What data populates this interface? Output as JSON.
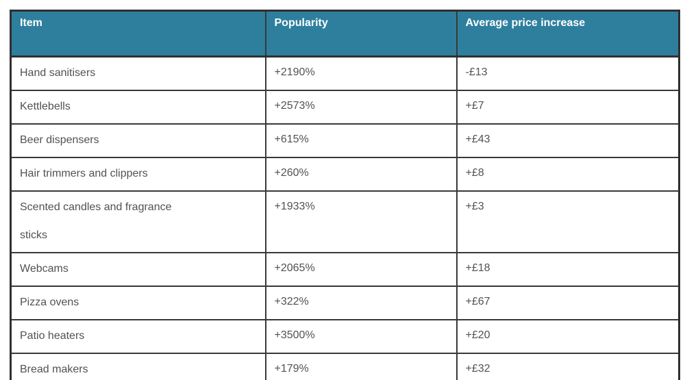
{
  "table": {
    "columns": [
      {
        "key": "item",
        "label": "Item"
      },
      {
        "key": "popularity",
        "label": "Popularity"
      },
      {
        "key": "price",
        "label": "Average price increase"
      }
    ],
    "rows": [
      {
        "item": "Hand sanitisers",
        "popularity": "+2190%",
        "price": "-£13"
      },
      {
        "item": "Kettlebells",
        "popularity": "+2573%",
        "price": "+£7"
      },
      {
        "item": "Beer dispensers",
        "popularity": "+615%",
        "price": "+£43"
      },
      {
        "item": "Hair trimmers and clippers",
        "popularity": "+260%",
        "price": "+£8"
      },
      {
        "item": "Scented candles and fragrance sticks",
        "popularity": "+1933%",
        "price": "+£3"
      },
      {
        "item": "Webcams",
        "popularity": "+2065%",
        "price": "+£18"
      },
      {
        "item": "Pizza ovens",
        "popularity": "+322%",
        "price": "+£67"
      },
      {
        "item": "Patio heaters",
        "popularity": "+3500%",
        "price": "+£20"
      },
      {
        "item": "Bread makers",
        "popularity": "+179%",
        "price": "+£32"
      }
    ],
    "colors": {
      "header_bg": "#2e7f9e",
      "header_text": "#ffffff",
      "border": "#383838",
      "cell_text": "#515156"
    }
  }
}
